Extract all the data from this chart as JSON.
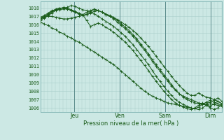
{
  "title": "Pression niveau de la mer( hPa )",
  "ylim": [
    1005.5,
    1018.8
  ],
  "yticks": [
    1006,
    1007,
    1008,
    1009,
    1010,
    1011,
    1012,
    1013,
    1014,
    1015,
    1016,
    1017,
    1018
  ],
  "xlim": [
    0,
    96
  ],
  "xtick_positions": [
    18,
    42,
    66,
    90
  ],
  "xtick_labels": [
    "Jeu",
    "Ven",
    "Sam",
    "Dim"
  ],
  "bg_color": "#cce8e4",
  "grid_color": "#a8ceca",
  "line_color": "#1a5c1a",
  "lines": [
    [
      1016.8,
      1016.9,
      1017.0,
      1017.0,
      1016.9,
      1016.8,
      1016.7,
      1016.7,
      1016.8,
      1016.9,
      1017.0,
      1017.2,
      1017.5,
      1017.7,
      1017.9,
      1017.7,
      1017.5,
      1017.3,
      1017.1,
      1016.9,
      1016.6,
      1016.3,
      1016.0,
      1015.7,
      1015.3,
      1014.9,
      1014.4,
      1013.9,
      1013.4,
      1012.8,
      1012.2,
      1011.6,
      1011.0,
      1010.4,
      1009.8,
      1009.2,
      1008.7,
      1008.2,
      1007.8,
      1007.5,
      1007.5,
      1007.8,
      1007.5,
      1007.3,
      1007.2,
      1007.0,
      1006.8,
      1006.5
    ],
    [
      1016.9,
      1017.1,
      1017.4,
      1017.7,
      1017.8,
      1017.8,
      1017.9,
      1018.1,
      1018.3,
      1018.2,
      1018.0,
      1017.8,
      1017.7,
      1017.6,
      1017.8,
      1017.7,
      1017.5,
      1017.2,
      1017.0,
      1016.7,
      1016.3,
      1015.9,
      1015.5,
      1015.1,
      1014.6,
      1014.1,
      1013.5,
      1012.9,
      1012.3,
      1011.6,
      1011.0,
      1010.4,
      1009.8,
      1009.2,
      1008.6,
      1008.1,
      1007.7,
      1007.4,
      1007.2,
      1007.0,
      1006.8,
      1006.6,
      1006.5,
      1006.3,
      1006.0,
      1005.8,
      1006.0,
      1006.4
    ],
    [
      1016.8,
      1017.0,
      1017.3,
      1017.6,
      1017.9,
      1018.0,
      1018.0,
      1017.9,
      1017.7,
      1017.5,
      1017.3,
      1017.1,
      1017.2,
      1017.4,
      1017.6,
      1017.7,
      1017.5,
      1017.2,
      1017.0,
      1016.8,
      1016.5,
      1016.1,
      1015.7,
      1015.3,
      1014.8,
      1014.3,
      1013.7,
      1013.1,
      1012.5,
      1011.8,
      1011.2,
      1010.6,
      1010.0,
      1009.4,
      1008.8,
      1008.2,
      1007.7,
      1007.3,
      1007.0,
      1006.8,
      1006.6,
      1006.5,
      1006.4,
      1006.5,
      1006.7,
      1006.9,
      1007.2,
      1006.8
    ],
    [
      1016.5,
      1016.8,
      1017.1,
      1017.4,
      1017.7,
      1017.9,
      1018.1,
      1018.0,
      1017.8,
      1017.6,
      1017.4,
      1017.2,
      1016.5,
      1015.8,
      1016.0,
      1016.2,
      1016.0,
      1015.7,
      1015.4,
      1015.1,
      1014.7,
      1014.3,
      1013.9,
      1013.4,
      1012.9,
      1012.3,
      1011.7,
      1011.1,
      1010.5,
      1009.8,
      1009.2,
      1008.6,
      1008.0,
      1007.5,
      1007.0,
      1006.6,
      1006.3,
      1006.1,
      1005.9,
      1005.8,
      1006.0,
      1006.3,
      1006.6,
      1006.4,
      1006.2,
      1006.5,
      1006.8,
      1006.5
    ],
    [
      1016.3,
      1016.1,
      1015.9,
      1015.6,
      1015.4,
      1015.1,
      1014.9,
      1014.6,
      1014.4,
      1014.1,
      1013.9,
      1013.6,
      1013.3,
      1013.0,
      1012.7,
      1012.4,
      1012.1,
      1011.8,
      1011.5,
      1011.2,
      1010.8,
      1010.4,
      1010.0,
      1009.6,
      1009.2,
      1008.8,
      1008.4,
      1008.0,
      1007.7,
      1007.4,
      1007.2,
      1007.0,
      1006.8,
      1006.6,
      1006.5,
      1006.4,
      1006.3,
      1006.2,
      1006.1,
      1006.0,
      1005.9,
      1005.8,
      1006.0,
      1006.3,
      1006.5,
      1006.4,
      1006.3,
      1006.2
    ],
    [
      1016.7,
      1016.9,
      1017.2,
      1017.5,
      1017.8,
      1018.0,
      1018.0,
      1017.9,
      1017.7,
      1017.5,
      1017.3,
      1017.1,
      1017.3,
      1017.5,
      1017.3,
      1017.0,
      1016.7,
      1016.4,
      1016.1,
      1015.8,
      1015.4,
      1015.0,
      1014.6,
      1014.1,
      1013.6,
      1013.0,
      1012.4,
      1011.8,
      1011.2,
      1010.5,
      1009.8,
      1009.2,
      1008.6,
      1008.0,
      1007.5,
      1007.0,
      1006.7,
      1006.4,
      1006.2,
      1006.0,
      1005.9,
      1006.1,
      1006.4,
      1006.7,
      1006.9,
      1006.7,
      1006.5,
      1006.3
    ]
  ]
}
